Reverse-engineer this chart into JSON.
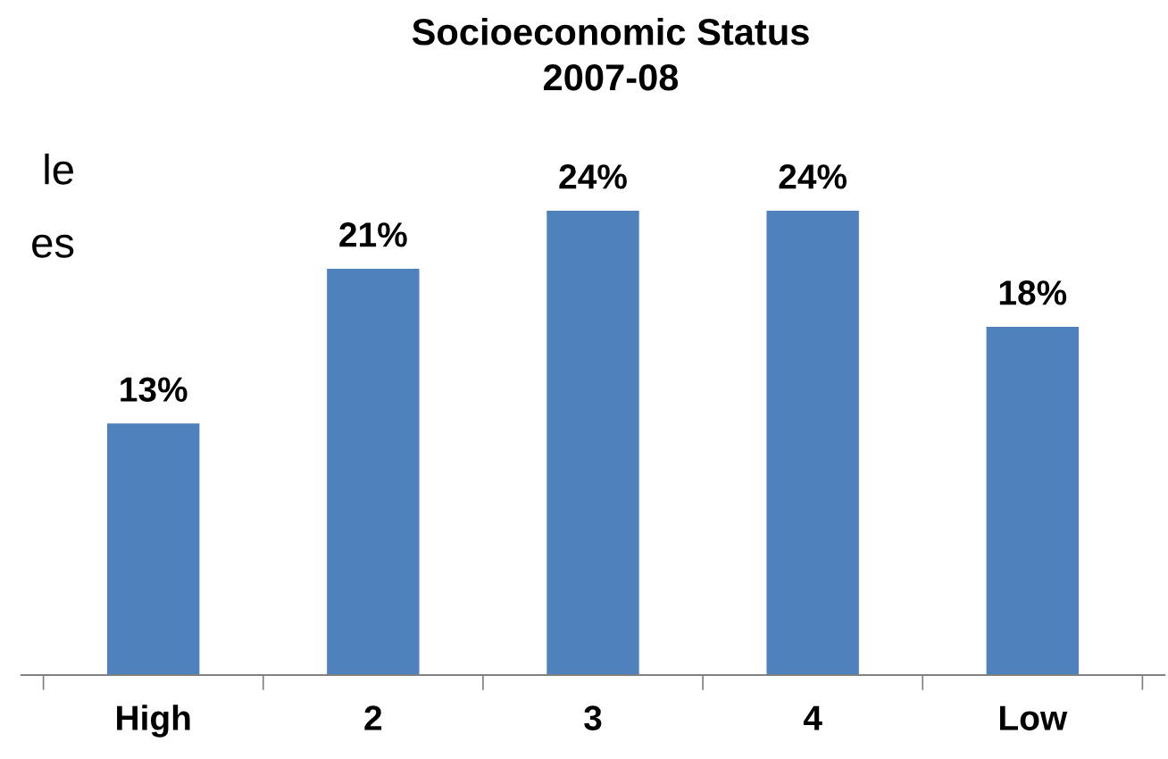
{
  "chart_data": {
    "type": "bar",
    "title": "Socioeconomic Status\n2007-08",
    "categories": [
      "High",
      "2",
      "3",
      "4",
      "Low"
    ],
    "values": [
      13,
      21,
      24,
      24,
      18
    ],
    "value_labels": [
      "13%",
      "21%",
      "24%",
      "24%",
      "18%"
    ],
    "color": "#4f81bd",
    "grid": false,
    "tick_labels": "x",
    "annotations": [
      "le",
      "es"
    ]
  }
}
